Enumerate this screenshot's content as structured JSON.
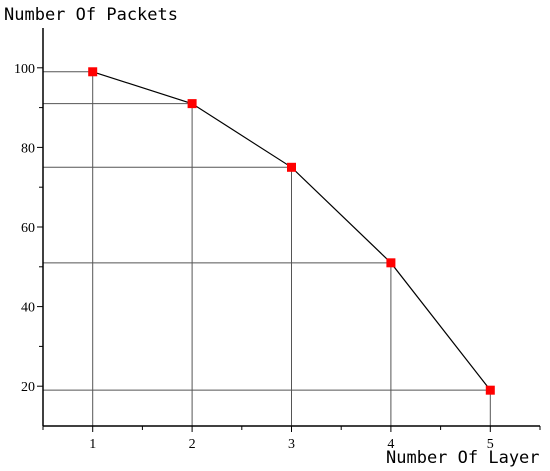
{
  "chart_data": {
    "type": "line",
    "title": "",
    "xlabel": "Number Of Layer",
    "ylabel": "Number Of Packets",
    "x": [
      1,
      2,
      3,
      4,
      5
    ],
    "series": [
      {
        "values": [
          99,
          91,
          75,
          51,
          19
        ]
      }
    ],
    "xlim": [
      0.5,
      5.5
    ],
    "ylim": [
      10,
      110
    ],
    "xticks": [
      "1",
      "2",
      "3",
      "4",
      "5"
    ],
    "yticks": [
      "20",
      "40",
      "60",
      "80",
      "100"
    ],
    "grid": "drop-lines",
    "legend": "none",
    "colors": {
      "line": "#000000",
      "marker": "#ff0000",
      "axis": "#000000",
      "guides": "#555555"
    }
  }
}
